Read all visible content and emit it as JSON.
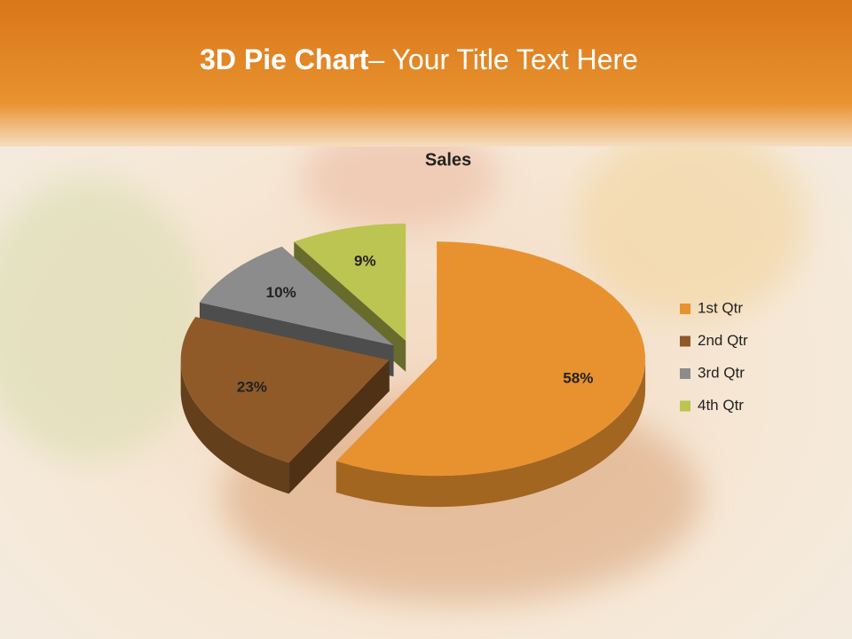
{
  "slide_title": [
    "3D Pie Chart",
    "– Your Title Text Here"
  ],
  "chart_data": {
    "type": "pie3d",
    "title": "Sales",
    "categories": [
      "1st Qtr",
      "2nd Qtr",
      "3rd Qtr",
      "4th Qtr"
    ],
    "values": [
      58,
      23,
      10,
      9
    ],
    "value_labels": [
      "58%",
      "23%",
      "10%",
      "9%"
    ],
    "colors": [
      "#e8922f",
      "#8f5a28",
      "#8c8c8c",
      "#bcc452"
    ],
    "legend": "right"
  }
}
